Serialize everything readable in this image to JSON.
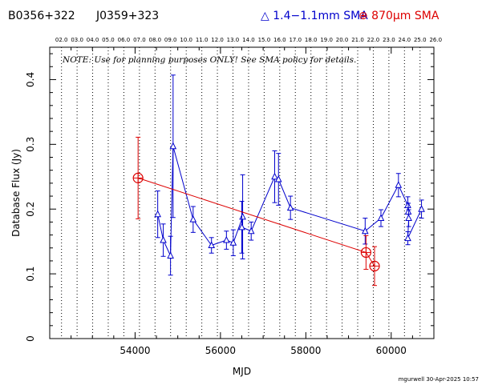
{
  "header": {
    "source_name": "B0356+322",
    "alt_name": "J0359+323",
    "legend_blue": "△ 1.4−1.1mm SMA",
    "legend_red": "⊕ 870μm SMA"
  },
  "footer": "mgurwell 30-Apr-2025 10:57",
  "colors": {
    "blue": "#0000cc",
    "red": "#dd0000",
    "axis": "#000000"
  },
  "chart_data": {
    "type": "scatter",
    "xlabel": "MJD",
    "ylabel": "Database Flux (Jy)",
    "xlim": [
      52000,
      61000
    ],
    "ylim": [
      0,
      0.45
    ],
    "x_ticks": [
      54000,
      56000,
      58000,
      60000
    ],
    "y_ticks": [
      0,
      0.1,
      0.2,
      0.3,
      0.4
    ],
    "y_tick_labels": [
      "0",
      "0.1",
      "0.2",
      "0.3",
      "0.4"
    ],
    "top_axis_labels": [
      "02.0",
      "03.0",
      "04.0",
      "05.0",
      "06.0",
      "07.0",
      "08.0",
      "09.0",
      "10.0",
      "11.0",
      "12.0",
      "13.0",
      "14.0",
      "15.0",
      "16.0",
      "17.0",
      "18.0",
      "19.0",
      "20.0",
      "21.0",
      "22.0",
      "23.0",
      "24.0",
      "25.0",
      "26.0"
    ],
    "year_lines_mjd": [
      52276,
      52641,
      53006,
      53371,
      53737,
      54102,
      54467,
      54832,
      55198,
      55563,
      55928,
      56293,
      56659,
      57024,
      57389,
      57754,
      58120,
      58485,
      58850,
      59215,
      59581,
      59946,
      60311,
      60676
    ],
    "note": "NOTE: Use for planning purposes ONLY!  See SMA policy for details.",
    "grid": "vertical dotted year lines",
    "series": [
      {
        "name": "1.4−1.1mm SMA",
        "marker": "triangle",
        "color": "#0000cc",
        "points": [
          {
            "x": 54530,
            "y": 0.192,
            "err": 0.036
          },
          {
            "x": 54660,
            "y": 0.152,
            "err": 0.025
          },
          {
            "x": 54830,
            "y": 0.128,
            "err": 0.03
          },
          {
            "x": 54890,
            "y": 0.297,
            "err": 0.11
          },
          {
            "x": 55360,
            "y": 0.184,
            "err": 0.02
          },
          {
            "x": 55790,
            "y": 0.144,
            "err": 0.012
          },
          {
            "x": 56140,
            "y": 0.152,
            "err": 0.014
          },
          {
            "x": 56300,
            "y": 0.148,
            "err": 0.02
          },
          {
            "x": 56520,
            "y": 0.188,
            "err": 0.065
          },
          {
            "x": 56500,
            "y": 0.172,
            "err": 0.04
          },
          {
            "x": 56720,
            "y": 0.166,
            "err": 0.014
          },
          {
            "x": 57270,
            "y": 0.25,
            "err": 0.04
          },
          {
            "x": 57360,
            "y": 0.246,
            "err": 0.04
          },
          {
            "x": 57640,
            "y": 0.202,
            "err": 0.018
          },
          {
            "x": 59390,
            "y": 0.166,
            "err": 0.02
          },
          {
            "x": 59760,
            "y": 0.186,
            "err": 0.013
          },
          {
            "x": 60170,
            "y": 0.237,
            "err": 0.018
          },
          {
            "x": 60390,
            "y": 0.206,
            "err": 0.013
          },
          {
            "x": 60400,
            "y": 0.196,
            "err": 0.013
          },
          {
            "x": 60410,
            "y": 0.186,
            "err": 0.013
          },
          {
            "x": 60390,
            "y": 0.155,
            "err": 0.01
          },
          {
            "x": 60710,
            "y": 0.2,
            "err": 0.014
          }
        ]
      },
      {
        "name": "870μm SMA",
        "marker": "circle-plus",
        "color": "#dd0000",
        "points": [
          {
            "x": 54070,
            "y": 0.248,
            "err": 0.063
          },
          {
            "x": 59410,
            "y": 0.133,
            "err": 0.026
          },
          {
            "x": 59610,
            "y": 0.112,
            "err": 0.03
          }
        ]
      }
    ]
  }
}
